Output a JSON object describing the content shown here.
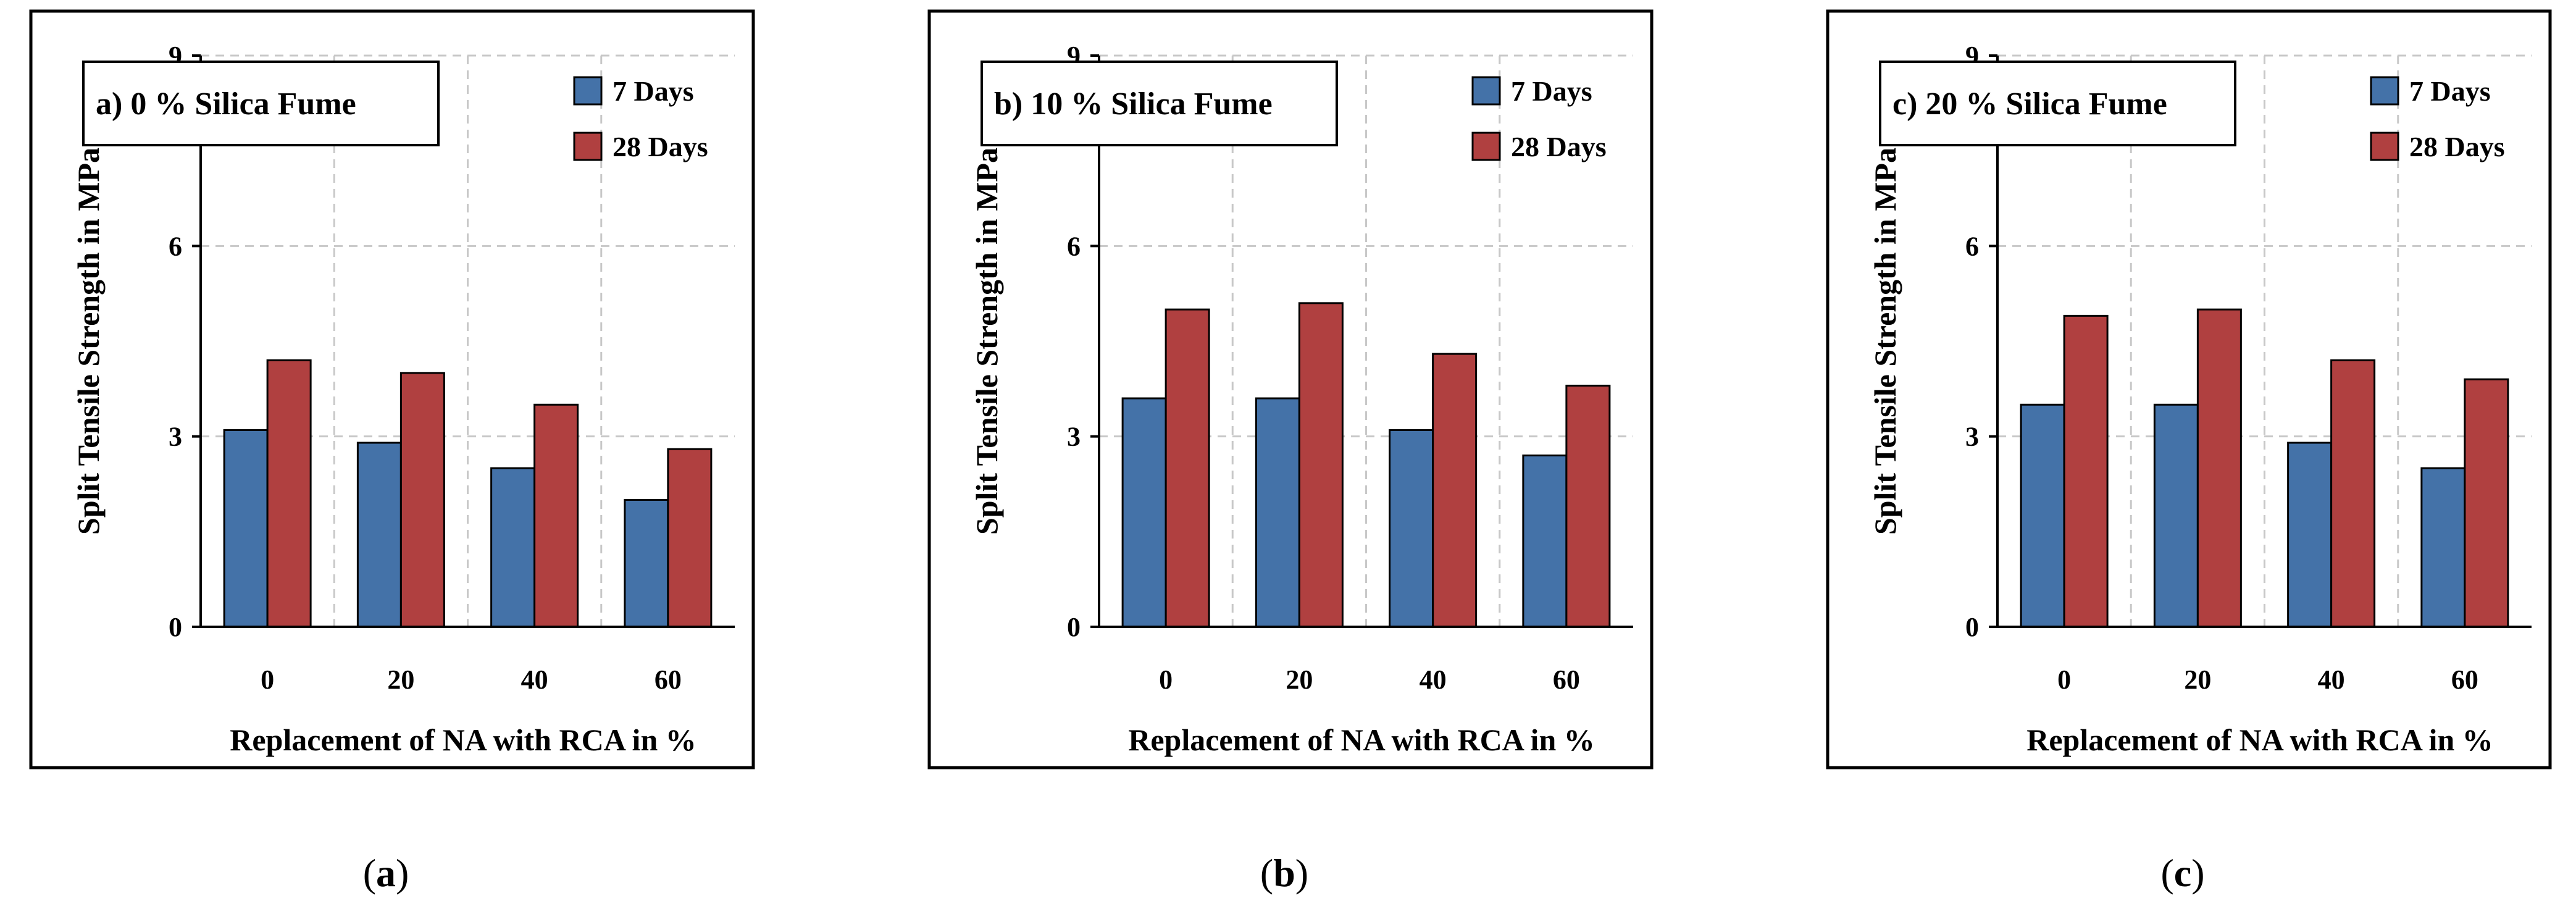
{
  "chart_data": [
    {
      "type": "bar",
      "title": "a) 0 % Silica Fume",
      "xlabel": "Replacement of NA with RCA in %",
      "ylabel": "Split Tensile Strength in MPa",
      "categories": [
        "0",
        "20",
        "40",
        "60"
      ],
      "ylim": [
        0,
        9
      ],
      "yticks": [
        "0",
        "3",
        "6",
        "9"
      ],
      "grid": true,
      "legend_position": "top-right",
      "series": [
        {
          "name": "7 Days",
          "color": "#4472a8",
          "values": [
            3.1,
            2.9,
            2.5,
            2.0
          ]
        },
        {
          "name": "28 Days",
          "color": "#b04040",
          "values": [
            4.2,
            4.0,
            3.5,
            2.8
          ]
        }
      ],
      "subfigure_label": {
        "open": "(",
        "letter": "a",
        "close": ")"
      }
    },
    {
      "type": "bar",
      "title": "b) 10 % Silica Fume",
      "xlabel": "Replacement of NA with RCA in %",
      "ylabel": "Split Tensile Strength in MPa",
      "categories": [
        "0",
        "20",
        "40",
        "60"
      ],
      "ylim": [
        0,
        9
      ],
      "yticks": [
        "0",
        "3",
        "6",
        "9"
      ],
      "grid": true,
      "legend_position": "top-right",
      "series": [
        {
          "name": "7 Days",
          "color": "#4472a8",
          "values": [
            3.6,
            3.6,
            3.1,
            2.7
          ]
        },
        {
          "name": "28 Days",
          "color": "#b04040",
          "values": [
            5.0,
            5.1,
            4.3,
            3.8
          ]
        }
      ],
      "subfigure_label": {
        "open": "(",
        "letter": "b",
        "close": ")"
      }
    },
    {
      "type": "bar",
      "title": "c) 20 % Silica Fume",
      "xlabel": "Replacement of NA with RCA in %",
      "ylabel": "Split Tensile Strength in MPa",
      "categories": [
        "0",
        "20",
        "40",
        "60"
      ],
      "ylim": [
        0,
        9
      ],
      "yticks": [
        "0",
        "3",
        "6",
        "9"
      ],
      "grid": true,
      "legend_position": "top-right",
      "series": [
        {
          "name": "7 Days",
          "color": "#4472a8",
          "values": [
            3.5,
            3.5,
            2.9,
            2.5
          ]
        },
        {
          "name": "28 Days",
          "color": "#b04040",
          "values": [
            4.9,
            5.0,
            4.2,
            3.9
          ]
        }
      ],
      "subfigure_label": {
        "open": "(",
        "letter": "c",
        "close": ")"
      }
    }
  ]
}
